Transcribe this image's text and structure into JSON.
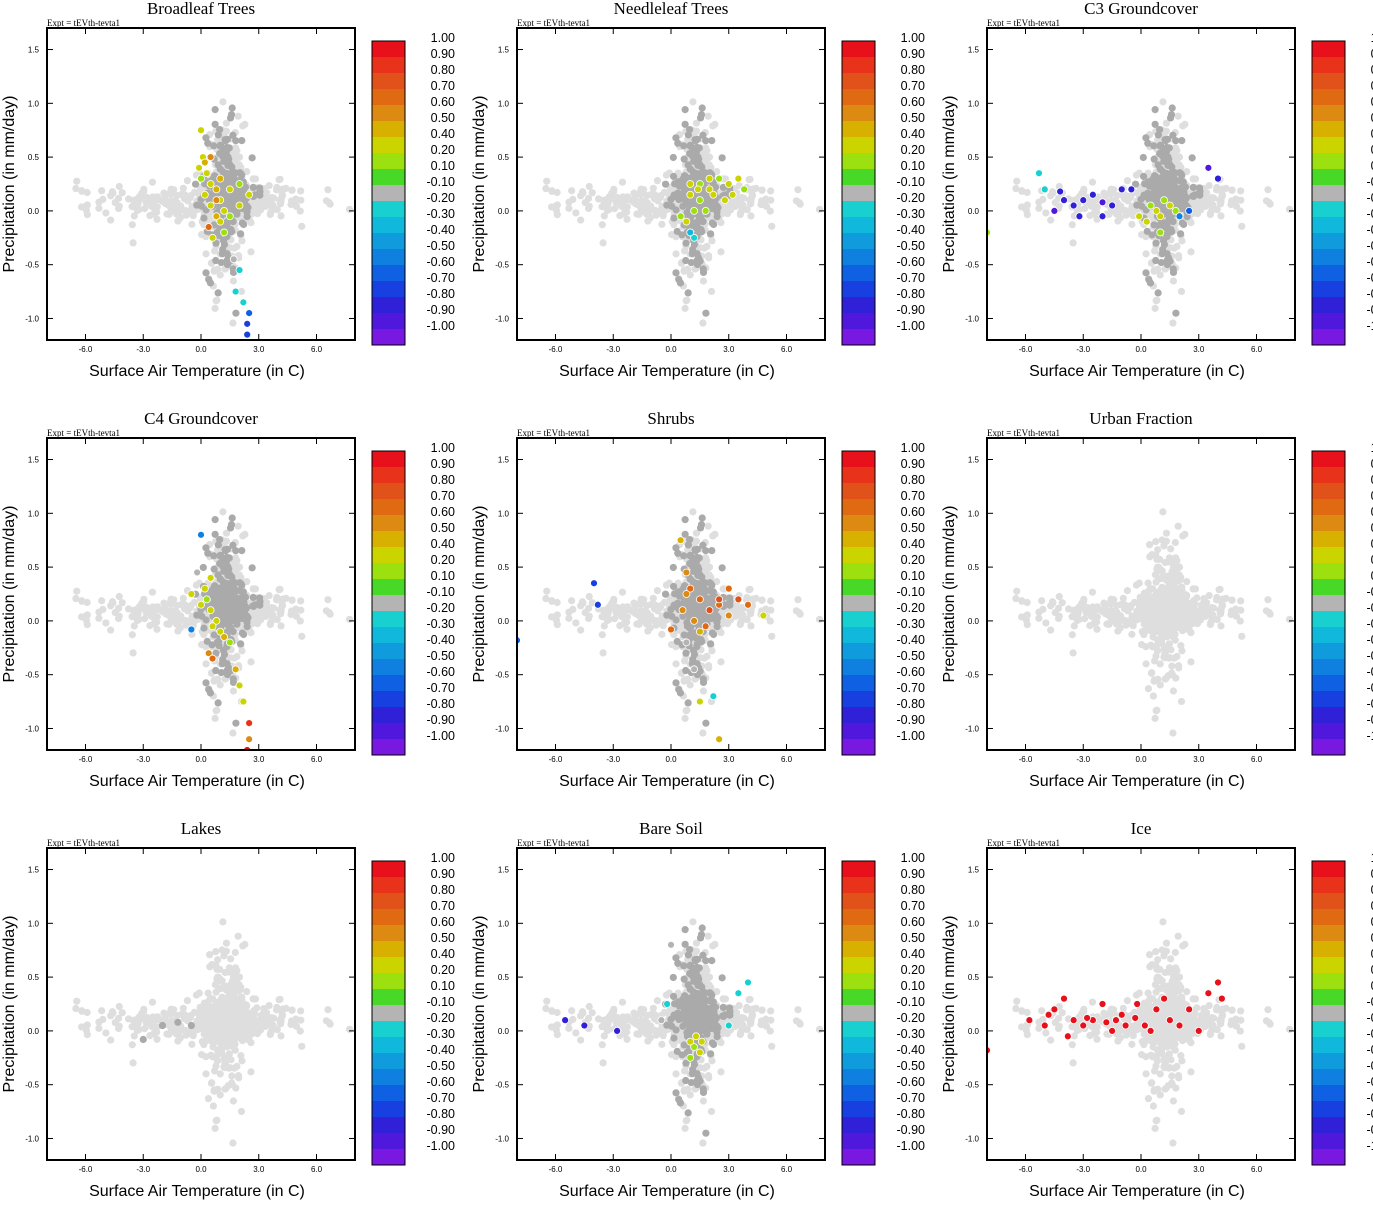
{
  "figure": {
    "experiment_label": "Expt = tEVth-tevta1",
    "xlabel": "Surface Air Temperature (in C)",
    "ylabel": "Precipitation (in mm/day)",
    "xticks": [
      "-6.0",
      "-3.0",
      "0.0",
      "3.0",
      "6.0"
    ],
    "yticks": [
      "1.5",
      "1.0",
      "0.5",
      "0.0",
      "-0.5",
      "-1.0"
    ],
    "colorbar": {
      "labels": [
        "1.00",
        "0.90",
        "0.80",
        "0.70",
        "0.60",
        "0.50",
        "0.40",
        "0.20",
        "0.10",
        "-0.10",
        "-0.20",
        "-0.30",
        "-0.40",
        "-0.50",
        "-0.60",
        "-0.70",
        "-0.80",
        "-0.90",
        "-1.00"
      ],
      "colors": [
        "#e8101a",
        "#e8331a",
        "#e0521a",
        "#e06a12",
        "#dc8a12",
        "#d8b000",
        "#ccd400",
        "#9ce010",
        "#48d828",
        "#b4b4b4",
        "#18d0d0",
        "#10b8dc",
        "#109cdc",
        "#1080e0",
        "#1060e4",
        "#1840e0",
        "#3020d8",
        "#5018dc",
        "#7818e0"
      ]
    }
  },
  "chart_data": [
    {
      "type": "scatter",
      "title": "Broadleaf Trees",
      "xlabel": "Surface Air Temperature (in C)",
      "ylabel": "Precipitation (in mm/day)",
      "xlim": [
        -8.0,
        8.0
      ],
      "ylim": [
        -1.2,
        1.7
      ],
      "color_range": [
        -1.0,
        1.0
      ],
      "points": [
        [
          0.0,
          0.75,
          0.3
        ],
        [
          0.1,
          0.5,
          0.2
        ],
        [
          0.2,
          0.45,
          0.4
        ],
        [
          0.3,
          0.35,
          0.3
        ],
        [
          -0.1,
          0.4,
          0.2
        ],
        [
          0.0,
          0.3,
          0.15
        ],
        [
          0.5,
          0.25,
          0.3
        ],
        [
          0.8,
          0.2,
          0.4
        ],
        [
          1.0,
          0.1,
          0.3
        ],
        [
          1.5,
          0.2,
          0.2
        ],
        [
          2.0,
          0.25,
          0.15
        ],
        [
          2.5,
          0.15,
          0.2
        ],
        [
          0.5,
          0.05,
          0.3
        ],
        [
          0.8,
          -0.05,
          0.4
        ],
        [
          1.2,
          0.0,
          0.2
        ],
        [
          0.4,
          -0.15,
          0.6
        ],
        [
          0.6,
          -0.25,
          0.3
        ],
        [
          1.0,
          -0.1,
          0.2
        ],
        [
          1.5,
          -0.05,
          0.15
        ],
        [
          0.2,
          0.15,
          0.2
        ],
        [
          0.5,
          0.5,
          0.5
        ],
        [
          1.0,
          0.3,
          0.4
        ],
        [
          2.0,
          0.05,
          0.2
        ],
        [
          1.2,
          -0.2,
          0.15
        ],
        [
          0.8,
          0.1,
          0.5
        ],
        [
          1.7,
          -0.45,
          -0.15
        ],
        [
          2.0,
          -0.55,
          -0.3
        ],
        [
          1.8,
          -0.75,
          -0.25
        ],
        [
          2.2,
          -0.85,
          -0.3
        ],
        [
          2.5,
          -0.95,
          -0.7
        ],
        [
          2.4,
          -1.05,
          -0.8
        ],
        [
          2.4,
          -1.15,
          -0.75
        ]
      ]
    },
    {
      "type": "scatter",
      "title": "Needleleaf Trees",
      "xlabel": "Surface Air Temperature (in C)",
      "ylabel": "Precipitation (in mm/day)",
      "xlim": [
        -8.0,
        8.0
      ],
      "ylim": [
        -1.2,
        1.7
      ],
      "color_range": [
        -1.0,
        1.0
      ],
      "points": [
        [
          1.5,
          0.25,
          0.15
        ],
        [
          2.0,
          0.2,
          0.2
        ],
        [
          2.5,
          0.3,
          0.15
        ],
        [
          3.0,
          0.25,
          0.3
        ],
        [
          3.5,
          0.3,
          0.2
        ],
        [
          3.8,
          0.2,
          0.15
        ],
        [
          1.0,
          0.15,
          0.2
        ],
        [
          1.2,
          0.0,
          0.15
        ],
        [
          0.8,
          -0.1,
          0.2
        ],
        [
          1.5,
          0.1,
          0.15
        ],
        [
          2.2,
          0.15,
          0.25
        ],
        [
          2.8,
          0.1,
          0.2
        ],
        [
          1.8,
          0.0,
          0.15
        ],
        [
          3.2,
          0.15,
          0.2
        ],
        [
          0.5,
          -0.05,
          0.15
        ],
        [
          1.0,
          0.25,
          0.3
        ],
        [
          2.0,
          0.3,
          0.2
        ],
        [
          1.2,
          -0.25,
          -0.3
        ],
        [
          1.0,
          -0.2,
          -0.35
        ],
        [
          1.4,
          0.2,
          0.2
        ]
      ]
    },
    {
      "type": "scatter",
      "title": "C3 Groundcover",
      "xlabel": "Surface Air Temperature (in C)",
      "ylabel": "Precipitation (in mm/day)",
      "xlim": [
        -8.0,
        8.0
      ],
      "ylim": [
        -1.2,
        1.7
      ],
      "color_range": [
        -1.0,
        1.0
      ],
      "points": [
        [
          -5.3,
          0.35,
          -0.3
        ],
        [
          -5.0,
          0.2,
          -0.3
        ],
        [
          -4.2,
          0.18,
          -0.9
        ],
        [
          -4.0,
          0.1,
          -0.85
        ],
        [
          -3.5,
          0.05,
          -0.9
        ],
        [
          -3.0,
          0.1,
          -0.9
        ],
        [
          -2.5,
          0.15,
          -0.85
        ],
        [
          -2.0,
          0.08,
          -0.95
        ],
        [
          -1.5,
          0.05,
          -0.85
        ],
        [
          -1.0,
          0.2,
          -0.9
        ],
        [
          -4.5,
          0.0,
          -0.95
        ],
        [
          -3.2,
          -0.05,
          -0.9
        ],
        [
          -2.0,
          -0.05,
          -0.85
        ],
        [
          -0.5,
          0.2,
          -0.9
        ],
        [
          3.5,
          0.4,
          -0.95
        ],
        [
          4.0,
          0.3,
          -0.85
        ],
        [
          0.5,
          0.05,
          0.15
        ],
        [
          0.8,
          0.0,
          0.2
        ],
        [
          1.0,
          -0.05,
          0.2
        ],
        [
          1.2,
          0.1,
          0.15
        ],
        [
          1.5,
          0.05,
          0.2
        ],
        [
          1.8,
          0.0,
          0.15
        ],
        [
          0.3,
          -0.1,
          0.2
        ],
        [
          1.0,
          -0.2,
          0.15
        ],
        [
          -0.1,
          -0.05,
          0.2
        ],
        [
          2.0,
          -0.05,
          -0.6
        ],
        [
          2.5,
          0.0,
          -0.7
        ],
        [
          -8.0,
          -0.2,
          0.15
        ]
      ]
    },
    {
      "type": "scatter",
      "title": "C4 Groundcover",
      "xlabel": "Surface Air Temperature (in C)",
      "ylabel": "Precipitation (in mm/day)",
      "xlim": [
        -8.0,
        8.0
      ],
      "ylim": [
        -1.2,
        1.7
      ],
      "color_range": [
        -1.0,
        1.0
      ],
      "points": [
        [
          0.0,
          0.8,
          -0.6
        ],
        [
          -0.2,
          0.45,
          -0.2
        ],
        [
          0.2,
          0.3,
          0.2
        ],
        [
          0.3,
          0.2,
          0.15
        ],
        [
          -0.5,
          0.25,
          0.2
        ],
        [
          0.5,
          0.1,
          0.3
        ],
        [
          0.8,
          0.0,
          0.2
        ],
        [
          1.0,
          -0.1,
          0.3
        ],
        [
          1.2,
          -0.15,
          0.4
        ],
        [
          0.6,
          -0.05,
          0.25
        ],
        [
          0.4,
          -0.3,
          0.5
        ],
        [
          1.5,
          -0.2,
          0.15
        ],
        [
          1.8,
          -0.45,
          0.4
        ],
        [
          2.0,
          -0.6,
          0.3
        ],
        [
          2.2,
          -0.75,
          0.3
        ],
        [
          2.5,
          -0.95,
          0.8
        ],
        [
          2.5,
          -1.1,
          0.5
        ],
        [
          2.4,
          -1.2,
          0.9
        ],
        [
          0.6,
          -0.35,
          0.65
        ],
        [
          -0.5,
          -0.08,
          -0.6
        ],
        [
          0.0,
          0.15,
          0.2
        ],
        [
          0.5,
          0.4,
          0.3
        ]
      ]
    },
    {
      "type": "scatter",
      "title": "Shrubs",
      "xlabel": "Surface Air Temperature (in C)",
      "ylabel": "Precipitation (in mm/day)",
      "xlim": [
        -8.0,
        8.0
      ],
      "ylim": [
        -1.2,
        1.7
      ],
      "color_range": [
        -1.0,
        1.0
      ],
      "points": [
        [
          0.5,
          0.75,
          0.45
        ],
        [
          -4.0,
          0.35,
          -0.75
        ],
        [
          -3.8,
          0.15,
          -0.8
        ],
        [
          -8.0,
          -0.18,
          -0.7
        ],
        [
          0.8,
          0.45,
          0.5
        ],
        [
          1.0,
          0.3,
          0.6
        ],
        [
          1.5,
          0.2,
          0.6
        ],
        [
          2.0,
          0.1,
          0.7
        ],
        [
          2.5,
          0.15,
          0.6
        ],
        [
          3.0,
          0.05,
          0.5
        ],
        [
          3.5,
          0.2,
          0.7
        ],
        [
          4.0,
          0.15,
          0.6
        ],
        [
          4.8,
          0.05,
          0.2
        ],
        [
          1.2,
          0.0,
          0.5
        ],
        [
          0.6,
          0.1,
          0.5
        ],
        [
          0.0,
          -0.08,
          0.6
        ],
        [
          1.8,
          -0.05,
          0.6
        ],
        [
          2.5,
          0.2,
          0.7
        ],
        [
          3.0,
          0.3,
          0.6
        ],
        [
          1.5,
          -0.1,
          0.4
        ],
        [
          2.2,
          -0.7,
          -0.3
        ],
        [
          1.5,
          -0.75,
          0.2
        ],
        [
          2.5,
          -1.1,
          0.4
        ],
        [
          0.8,
          -0.2,
          -0.2
        ],
        [
          1.2,
          -0.45,
          -0.2
        ],
        [
          0.8,
          0.25,
          0.55
        ]
      ]
    },
    {
      "type": "scatter",
      "title": "Urban Fraction",
      "xlabel": "Surface Air Temperature (in C)",
      "ylabel": "Precipitation (in mm/day)",
      "xlim": [
        -8.0,
        8.0
      ],
      "ylim": [
        -1.2,
        1.7
      ],
      "color_range": [
        -1.0,
        1.0
      ],
      "points": []
    },
    {
      "type": "scatter",
      "title": "Lakes",
      "xlabel": "Surface Air Temperature (in C)",
      "ylabel": "Precipitation (in mm/day)",
      "xlim": [
        -8.0,
        8.0
      ],
      "ylim": [
        -1.2,
        1.7
      ],
      "color_range": [
        -1.0,
        1.0
      ],
      "points": []
    },
    {
      "type": "scatter",
      "title": "Bare Soil",
      "xlabel": "Surface Air Temperature (in C)",
      "ylabel": "Precipitation (in mm/day)",
      "xlim": [
        -8.0,
        8.0
      ],
      "ylim": [
        -1.2,
        1.7
      ],
      "color_range": [
        -1.0,
        1.0
      ],
      "points": [
        [
          -5.5,
          0.1,
          -0.9
        ],
        [
          -4.5,
          0.05,
          -0.85
        ],
        [
          -2.8,
          0.0,
          -0.9
        ],
        [
          0.0,
          0.8,
          -0.2
        ],
        [
          -0.5,
          0.1,
          -0.2
        ],
        [
          -0.2,
          0.25,
          -0.3
        ],
        [
          1.0,
          -0.1,
          0.2
        ],
        [
          1.2,
          -0.15,
          0.15
        ],
        [
          1.5,
          -0.2,
          0.2
        ],
        [
          1.3,
          -0.05,
          0.3
        ],
        [
          1.0,
          -0.25,
          0.15
        ],
        [
          1.6,
          -0.1,
          0.2
        ],
        [
          4.0,
          0.45,
          -0.3
        ],
        [
          3.5,
          0.35,
          -0.25
        ],
        [
          3.0,
          0.05,
          -0.3
        ]
      ]
    },
    {
      "type": "scatter",
      "title": "Ice",
      "xlabel": "Surface Air Temperature (in C)",
      "ylabel": "Precipitation (in mm/day)",
      "xlim": [
        -8.0,
        8.0
      ],
      "ylim": [
        -1.2,
        1.7
      ],
      "color_range": [
        -1.0,
        1.0
      ],
      "points": [
        [
          -8.0,
          -0.18,
          0.95
        ],
        [
          -5.8,
          0.1,
          1.0
        ],
        [
          -5.0,
          0.05,
          1.0
        ],
        [
          -4.5,
          0.2,
          1.0
        ],
        [
          -4.0,
          0.3,
          1.0
        ],
        [
          -3.5,
          0.1,
          1.0
        ],
        [
          -3.0,
          0.05,
          1.0
        ],
        [
          -2.5,
          0.1,
          1.0
        ],
        [
          -2.0,
          0.25,
          1.0
        ],
        [
          -1.8,
          0.08,
          1.0
        ],
        [
          -1.5,
          0.0,
          1.0
        ],
        [
          -1.0,
          0.15,
          1.0
        ],
        [
          -0.8,
          0.05,
          1.0
        ],
        [
          -0.3,
          0.12,
          1.0
        ],
        [
          -0.2,
          0.25,
          1.0
        ],
        [
          0.5,
          0.0,
          1.0
        ],
        [
          0.8,
          0.2,
          1.0
        ],
        [
          1.2,
          0.3,
          1.0
        ],
        [
          1.5,
          0.1,
          1.0
        ],
        [
          2.0,
          0.05,
          1.0
        ],
        [
          2.5,
          0.2,
          1.0
        ],
        [
          3.0,
          0.0,
          1.0
        ],
        [
          3.5,
          0.35,
          1.0
        ],
        [
          4.0,
          0.45,
          1.0
        ],
        [
          4.2,
          0.3,
          1.0
        ],
        [
          -3.8,
          -0.05,
          1.0
        ],
        [
          -2.8,
          0.12,
          1.0
        ],
        [
          -4.8,
          0.15,
          1.0
        ],
        [
          -1.3,
          0.1,
          1.0
        ],
        [
          0.2,
          0.05,
          1.0
        ]
      ]
    }
  ]
}
